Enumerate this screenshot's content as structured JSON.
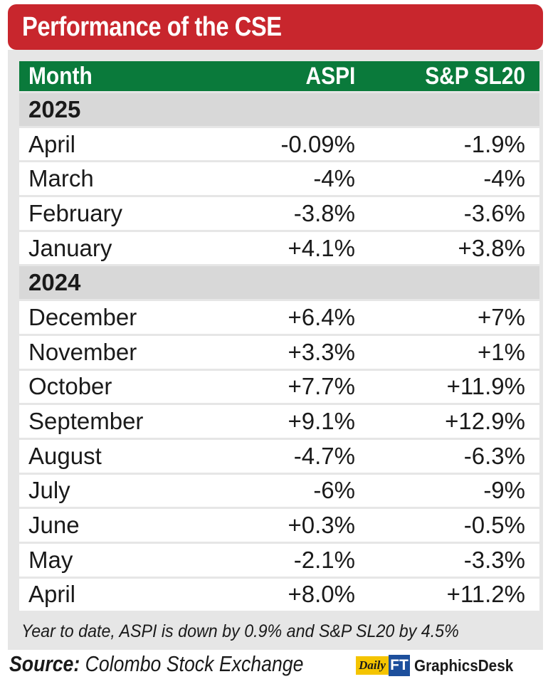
{
  "title": "Performance of the CSE",
  "chart_data": {
    "type": "table",
    "title": "Performance of the CSE",
    "columns": [
      "Month",
      "ASPI",
      "S&P SL20"
    ],
    "groups": [
      {
        "year": "2025",
        "rows": [
          {
            "month": "April",
            "aspi": "-0.09%",
            "sp": "-1.9%"
          },
          {
            "month": "March",
            "aspi": "-4%",
            "sp": "-4%"
          },
          {
            "month": "February",
            "aspi": "-3.8%",
            "sp": "-3.6%"
          },
          {
            "month": "January",
            "aspi": "+4.1%",
            "sp": "+3.8%"
          }
        ]
      },
      {
        "year": "2024",
        "rows": [
          {
            "month": "December",
            "aspi": "+6.4%",
            "sp": "+7%"
          },
          {
            "month": "November",
            "aspi": "+3.3%",
            "sp": "+1%"
          },
          {
            "month": "October",
            "aspi": "+7.7%",
            "sp": "+11.9%"
          },
          {
            "month": "September",
            "aspi": "+9.1%",
            "sp": "+12.9%"
          },
          {
            "month": "August",
            "aspi": "-4.7%",
            "sp": "-6.3%"
          },
          {
            "month": "July",
            "aspi": "-6%",
            "sp": "-9%"
          },
          {
            "month": "June",
            "aspi": "+0.3%",
            "sp": "-0.5%"
          },
          {
            "month": "May",
            "aspi": "-2.1%",
            "sp": "-3.3%"
          },
          {
            "month": "April",
            "aspi": "+8.0%",
            "sp": "+11.2%"
          }
        ]
      }
    ]
  },
  "footnote": "Year to date, ASPI is down by 0.9% and S&P SL20 by 4.5%",
  "source": {
    "label": "Source:",
    "text": "Colombo Stock Exchange"
  },
  "branding": {
    "daily": "Daily",
    "ft": "FT",
    "desk": "GraphicsDesk"
  },
  "colors": {
    "title_bg": "#c8262d",
    "header_bg": "#0a7a3b",
    "panel_bg": "#e6e6e6",
    "year_bg": "#d8d8d8"
  }
}
